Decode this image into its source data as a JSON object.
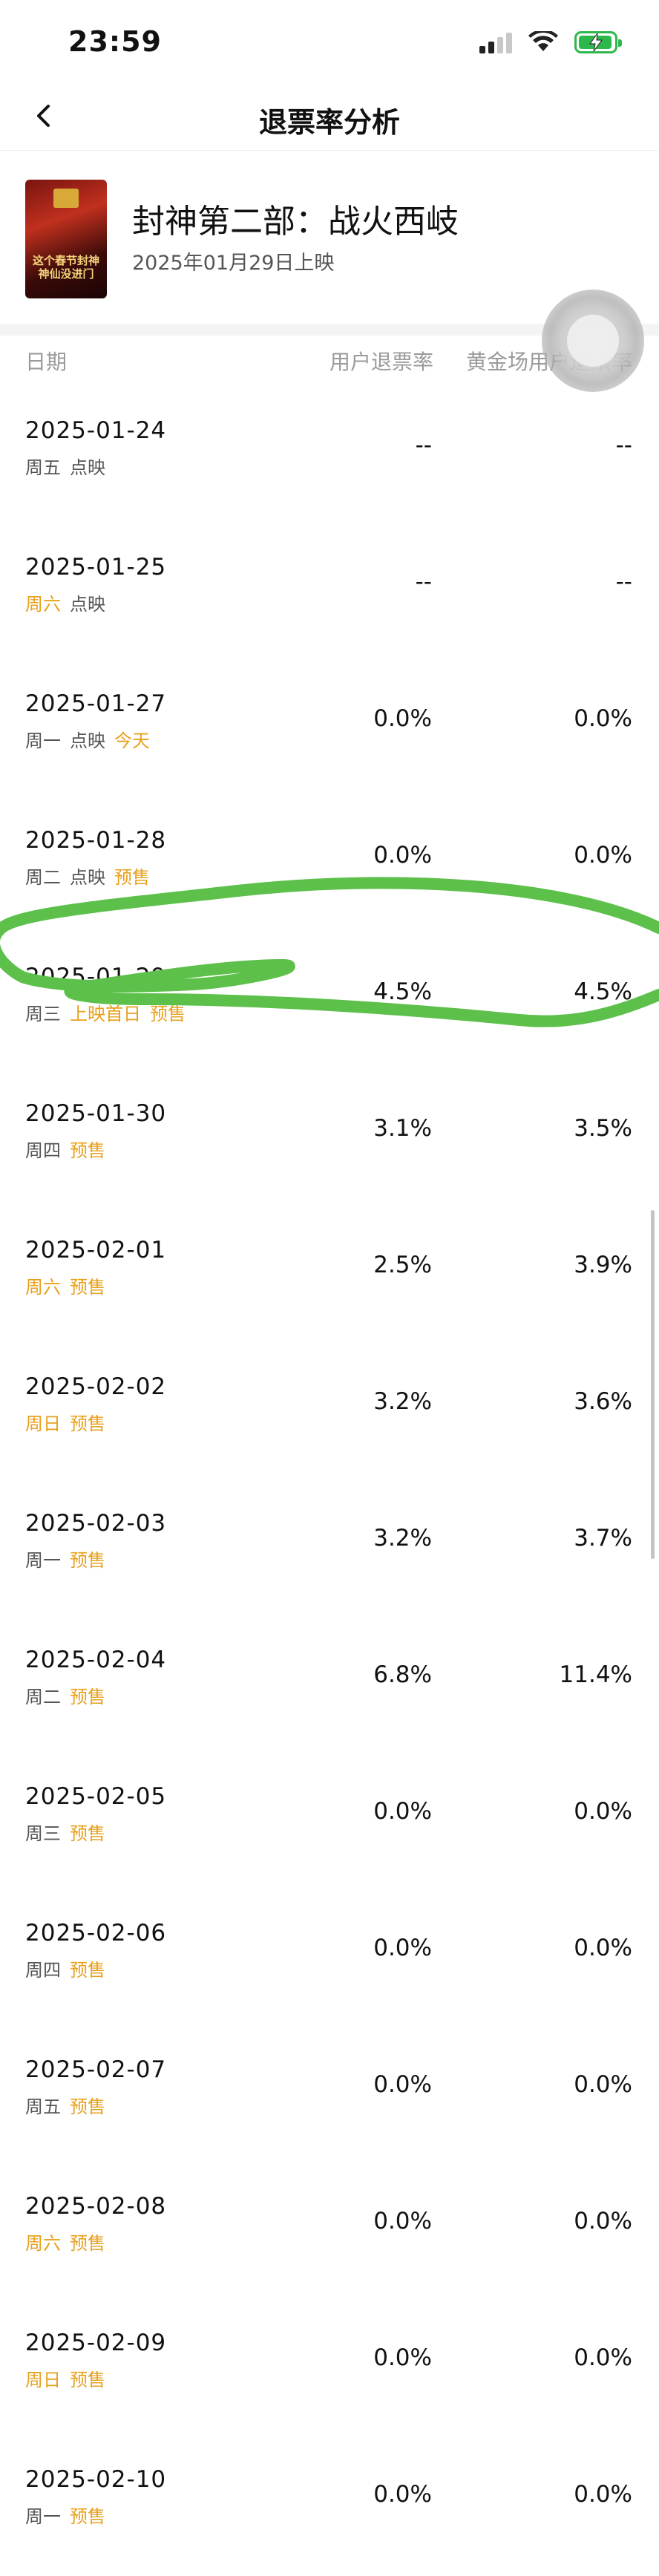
{
  "status": {
    "time": "23:59"
  },
  "nav": {
    "title": "退票率分析"
  },
  "movie": {
    "title": "封神第二部：战火西岐",
    "release": "2025年01月29日上映",
    "poster_text": "这个春节封神\n神仙没进门"
  },
  "table": {
    "headers": {
      "date": "日期",
      "user_rate": "用户退票率",
      "gold_rate": "黄金场用户退票率"
    },
    "rows": [
      {
        "date": "2025-01-24",
        "tags": [
          {
            "text": "周五",
            "color": "gray"
          },
          {
            "text": "点映",
            "color": "gray"
          }
        ],
        "user_rate": "--",
        "gold_rate": "--"
      },
      {
        "date": "2025-01-25",
        "tags": [
          {
            "text": "周六",
            "color": "orange"
          },
          {
            "text": "点映",
            "color": "gray"
          }
        ],
        "user_rate": "--",
        "gold_rate": "--"
      },
      {
        "date": "2025-01-27",
        "tags": [
          {
            "text": "周一",
            "color": "gray"
          },
          {
            "text": "点映",
            "color": "gray"
          },
          {
            "text": "今天",
            "color": "orange"
          }
        ],
        "user_rate": "0.0%",
        "gold_rate": "0.0%"
      },
      {
        "date": "2025-01-28",
        "tags": [
          {
            "text": "周二",
            "color": "gray"
          },
          {
            "text": "点映",
            "color": "gray"
          },
          {
            "text": "预售",
            "color": "orange"
          }
        ],
        "user_rate": "0.0%",
        "gold_rate": "0.0%"
      },
      {
        "date": "2025-01-29",
        "tags": [
          {
            "text": "周三",
            "color": "gray"
          },
          {
            "text": "上映首日",
            "color": "orange"
          },
          {
            "text": "预售",
            "color": "orange"
          }
        ],
        "user_rate": "4.5%",
        "gold_rate": "4.5%"
      },
      {
        "date": "2025-01-30",
        "tags": [
          {
            "text": "周四",
            "color": "gray"
          },
          {
            "text": "预售",
            "color": "orange"
          }
        ],
        "user_rate": "3.1%",
        "gold_rate": "3.5%"
      },
      {
        "date": "2025-02-01",
        "tags": [
          {
            "text": "周六",
            "color": "orange"
          },
          {
            "text": "预售",
            "color": "orange"
          }
        ],
        "user_rate": "2.5%",
        "gold_rate": "3.9%"
      },
      {
        "date": "2025-02-02",
        "tags": [
          {
            "text": "周日",
            "color": "orange"
          },
          {
            "text": "预售",
            "color": "orange"
          }
        ],
        "user_rate": "3.2%",
        "gold_rate": "3.6%"
      },
      {
        "date": "2025-02-03",
        "tags": [
          {
            "text": "周一",
            "color": "gray"
          },
          {
            "text": "预售",
            "color": "orange"
          }
        ],
        "user_rate": "3.2%",
        "gold_rate": "3.7%"
      },
      {
        "date": "2025-02-04",
        "tags": [
          {
            "text": "周二",
            "color": "gray"
          },
          {
            "text": "预售",
            "color": "orange"
          }
        ],
        "user_rate": "6.8%",
        "gold_rate": "11.4%"
      },
      {
        "date": "2025-02-05",
        "tags": [
          {
            "text": "周三",
            "color": "gray"
          },
          {
            "text": "预售",
            "color": "orange"
          }
        ],
        "user_rate": "0.0%",
        "gold_rate": "0.0%"
      },
      {
        "date": "2025-02-06",
        "tags": [
          {
            "text": "周四",
            "color": "gray"
          },
          {
            "text": "预售",
            "color": "orange"
          }
        ],
        "user_rate": "0.0%",
        "gold_rate": "0.0%"
      },
      {
        "date": "2025-02-07",
        "tags": [
          {
            "text": "周五",
            "color": "gray"
          },
          {
            "text": "预售",
            "color": "orange"
          }
        ],
        "user_rate": "0.0%",
        "gold_rate": "0.0%"
      },
      {
        "date": "2025-02-08",
        "tags": [
          {
            "text": "周六",
            "color": "orange"
          },
          {
            "text": "预售",
            "color": "orange"
          }
        ],
        "user_rate": "0.0%",
        "gold_rate": "0.0%"
      },
      {
        "date": "2025-02-09",
        "tags": [
          {
            "text": "周日",
            "color": "orange"
          },
          {
            "text": "预售",
            "color": "orange"
          }
        ],
        "user_rate": "0.0%",
        "gold_rate": "0.0%"
      },
      {
        "date": "2025-02-10",
        "tags": [
          {
            "text": "周一",
            "color": "gray"
          },
          {
            "text": "预售",
            "color": "orange"
          }
        ],
        "user_rate": "0.0%",
        "gold_rate": "0.0%"
      }
    ]
  },
  "colors": {
    "accent_orange": "#e8a01c",
    "annotation_green": "#5cc04a",
    "battery_green": "#2db84c"
  },
  "icons": {
    "back": "chevron-left-icon",
    "wifi": "wifi-icon",
    "battery": "battery-charging-icon",
    "signal": "cellular-signal-icon"
  }
}
